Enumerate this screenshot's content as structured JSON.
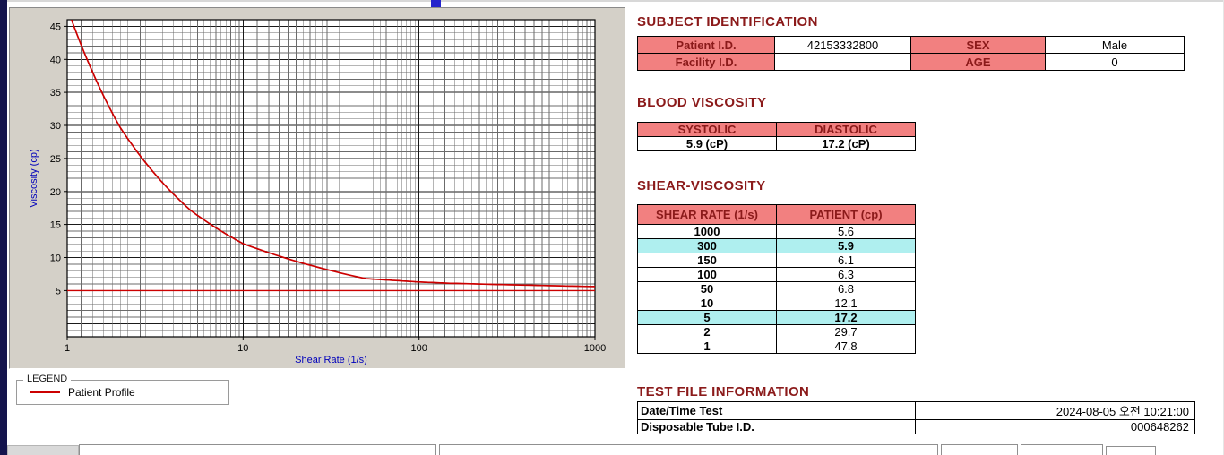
{
  "chart_data": {
    "type": "line",
    "title": "",
    "xlabel": "Shear Rate (1/s)",
    "ylabel": "Viscosity (cp)",
    "x_scale": "log",
    "xlim": [
      1,
      1000
    ],
    "ylim": [
      -2,
      46
    ],
    "x_ticks": [
      1,
      10,
      100,
      1000
    ],
    "y_ticks": [
      5,
      10,
      15,
      20,
      25,
      30,
      35,
      40,
      45
    ],
    "grid": "on",
    "legend_position": "below-left",
    "series": [
      {
        "name": "Patient Profile",
        "color": "#cc0000",
        "x": [
          1,
          2,
          5,
          10,
          50,
          100,
          150,
          300,
          1000
        ],
        "y": [
          47.8,
          29.7,
          17.2,
          12.1,
          6.8,
          6.3,
          6.1,
          5.9,
          5.6
        ]
      }
    ],
    "reference_line": {
      "y": 5.0,
      "color": "#cc0000"
    }
  },
  "legend": {
    "title": "LEGEND",
    "series_label": "Patient Profile"
  },
  "subject_identification": {
    "title": "SUBJECT IDENTIFICATION",
    "rows": [
      {
        "label1": "Patient I.D.",
        "value1": "42153332800",
        "label2": "SEX",
        "value2": "Male"
      },
      {
        "label1": "Facility I.D.",
        "value1": "",
        "label2": "AGE",
        "value2": "0"
      }
    ]
  },
  "blood_viscosity": {
    "title": "BLOOD VISCOSITY",
    "headers": [
      "SYSTOLIC",
      "DIASTOLIC"
    ],
    "values": [
      "5.9 (cP)",
      "17.2 (cP)"
    ]
  },
  "shear_viscosity": {
    "title": "SHEAR-VISCOSITY",
    "headers": [
      "SHEAR RATE (1/s)",
      "PATIENT (cp)"
    ],
    "rows": [
      {
        "rate": "1000",
        "value": "5.6",
        "highlight": false
      },
      {
        "rate": "300",
        "value": "5.9",
        "highlight": true
      },
      {
        "rate": "150",
        "value": "6.1",
        "highlight": false
      },
      {
        "rate": "100",
        "value": "6.3",
        "highlight": false
      },
      {
        "rate": "50",
        "value": "6.8",
        "highlight": false
      },
      {
        "rate": "10",
        "value": "12.1",
        "highlight": false
      },
      {
        "rate": "5",
        "value": "17.2",
        "highlight": true
      },
      {
        "rate": "2",
        "value": "29.7",
        "highlight": false
      },
      {
        "rate": "1",
        "value": "47.8",
        "highlight": false
      }
    ]
  },
  "test_file_information": {
    "title": "TEST FILE INFORMATION",
    "rows": [
      {
        "label": "Date/Time Test",
        "value": "2024-08-05  오전 10:21:00"
      },
      {
        "label": "Disposable Tube I.D.",
        "value": "000648262"
      }
    ]
  },
  "colors": {
    "section_title_text": "#8B1A1A",
    "table_header_bg": "#F28080",
    "table_header_text": "#8B1A1A",
    "highlight_bg": "#AFEFEF",
    "curve": "#CC0000",
    "axis_label": "#0000BB",
    "panel_bg": "#D4D0C8",
    "left_strip": "#14144D"
  }
}
